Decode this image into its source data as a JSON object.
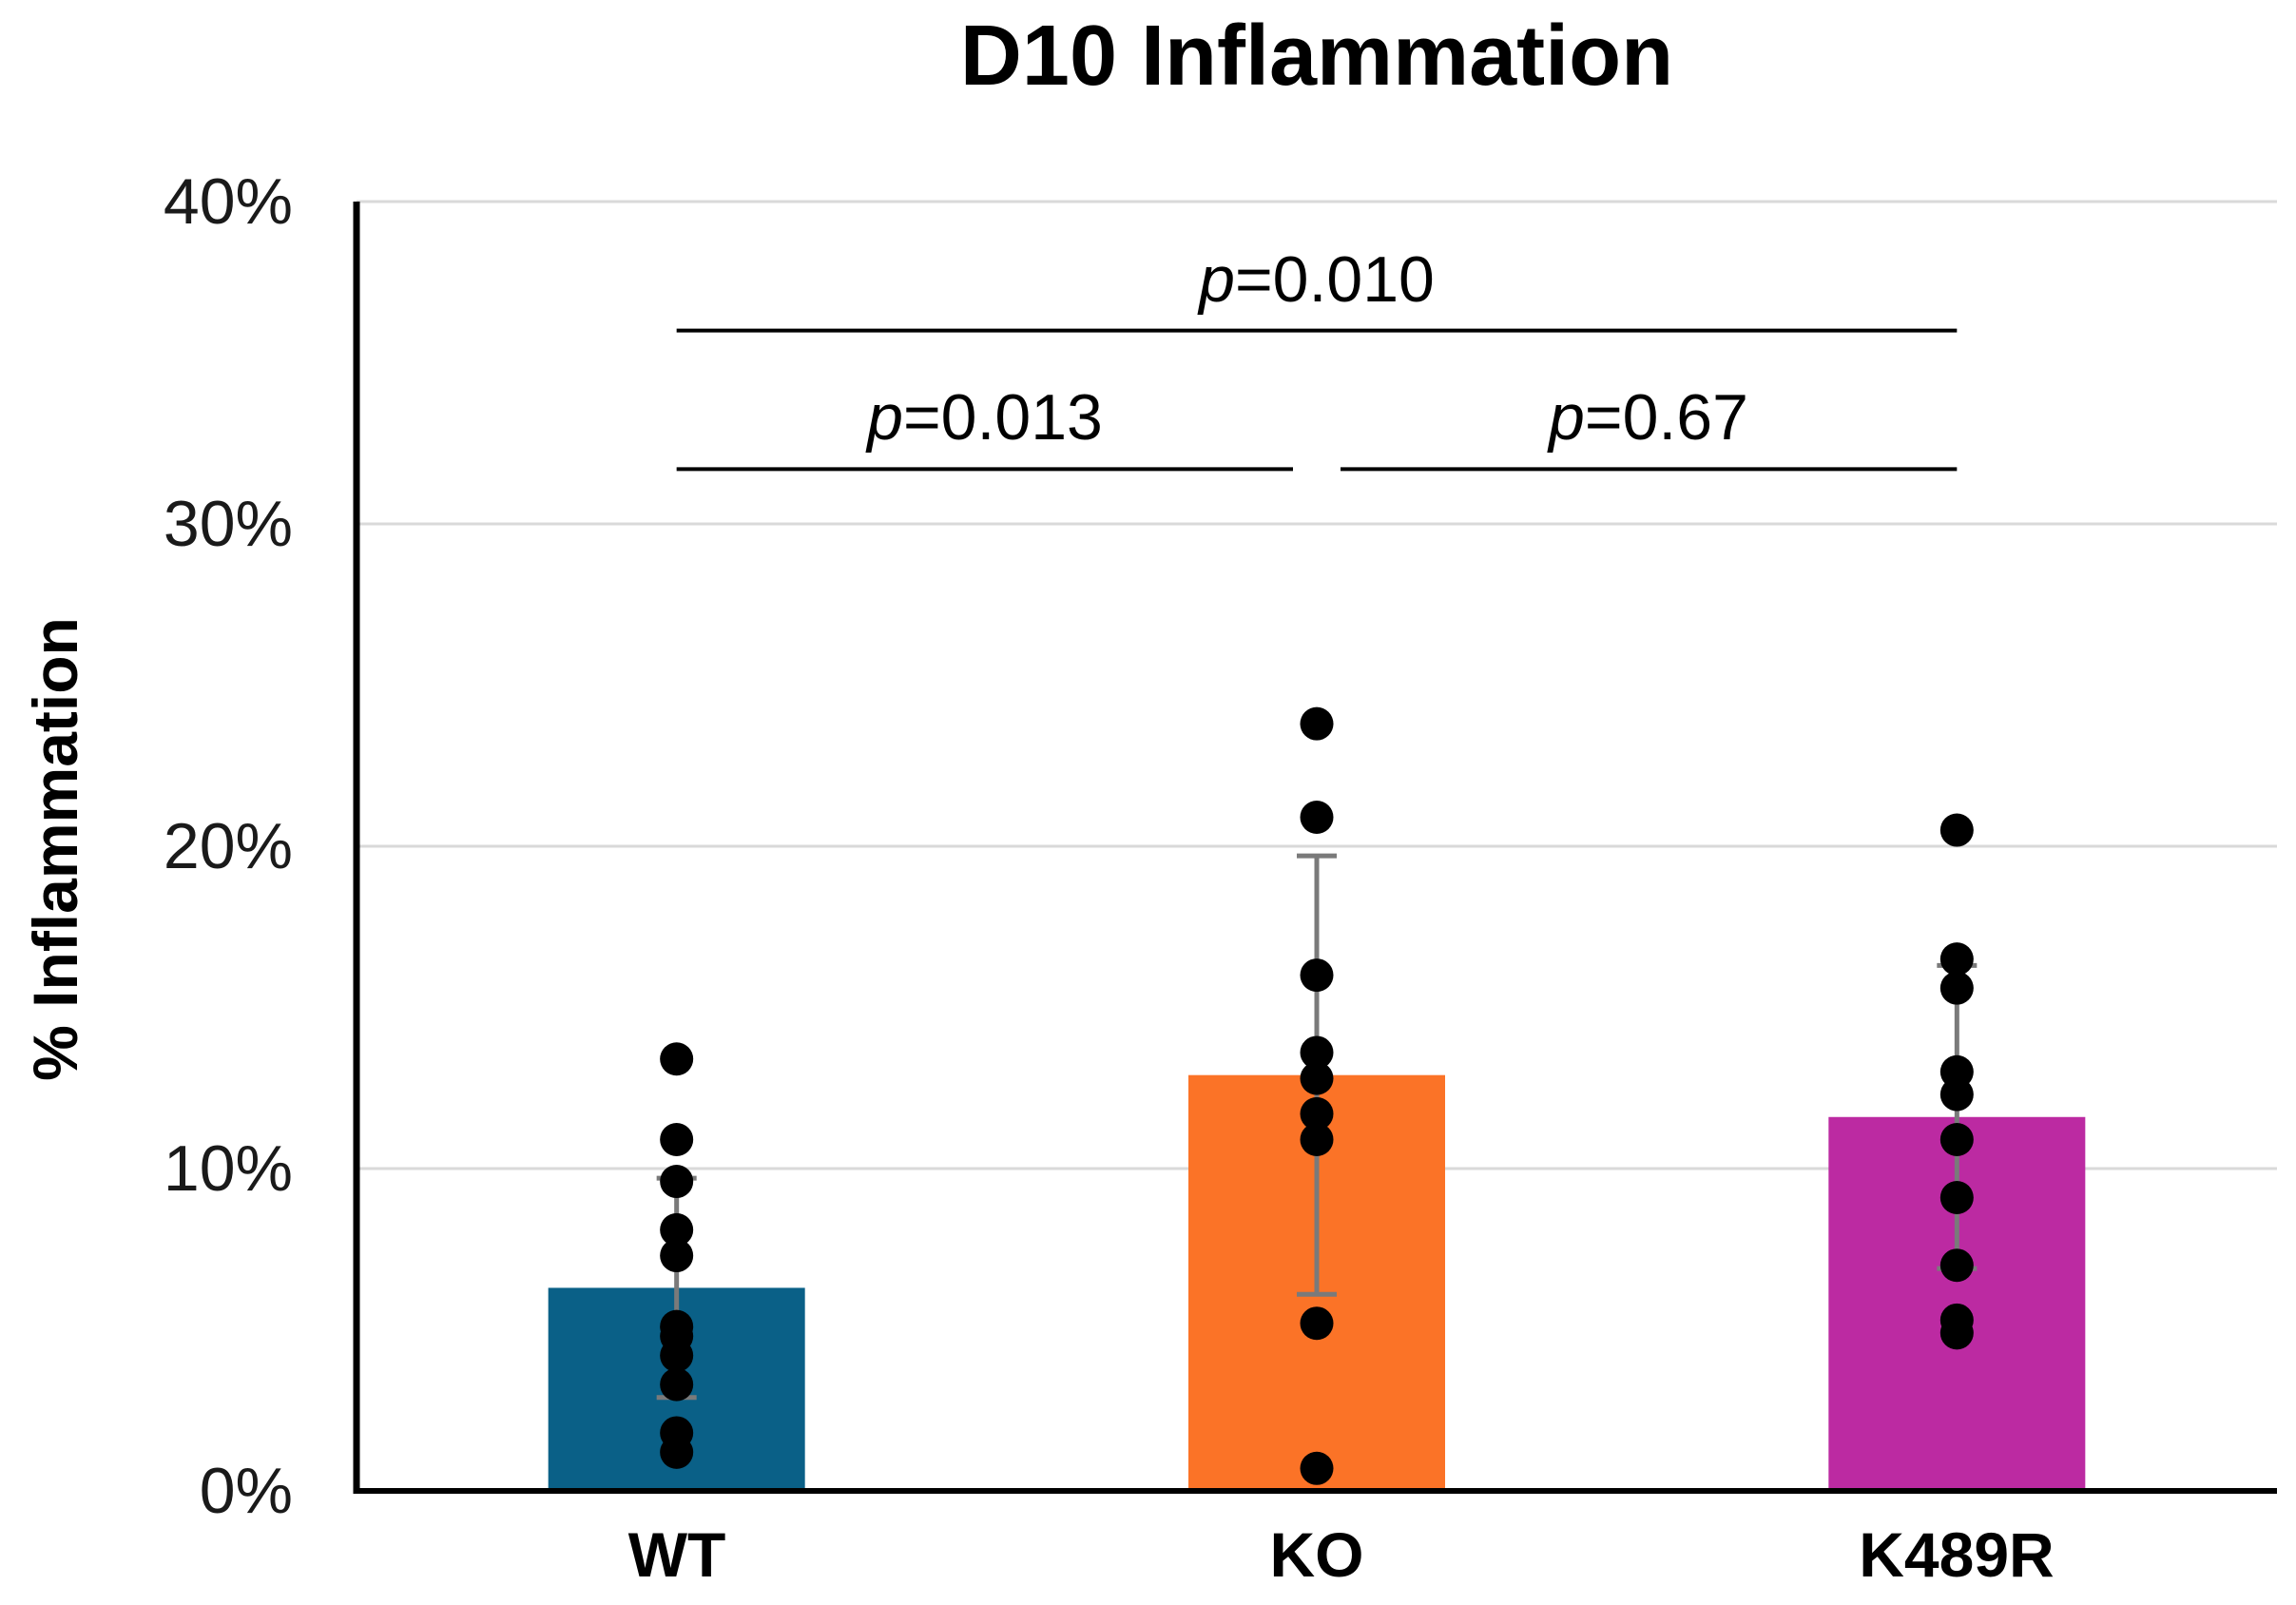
{
  "chart_data": {
    "type": "bar",
    "title": "D10 Inflammation",
    "ylabel": "% Inflammation",
    "categories": [
      "WT",
      "KO",
      "K489R"
    ],
    "values": [
      6.3,
      12.9,
      11.6
    ],
    "bar_colors": [
      "#0A6087",
      "#FB7327",
      "#BC2AA2"
    ],
    "scatter_points": [
      [
        13.4,
        10.9,
        9.6,
        8.1,
        7.3,
        5.1,
        4.8,
        4.2,
        3.3,
        1.8,
        1.2
      ],
      [
        23.8,
        20.9,
        16.0,
        13.6,
        12.8,
        11.7,
        10.9,
        5.2,
        0.7
      ],
      [
        20.5,
        16.5,
        15.6,
        13.0,
        12.3,
        10.9,
        9.1,
        7.0,
        5.3,
        4.9
      ]
    ],
    "error_bars": [
      {
        "low": 2.9,
        "high": 9.7
      },
      {
        "low": 6.1,
        "high": 19.7
      },
      {
        "low": 6.9,
        "high": 16.3
      }
    ],
    "y_ticks": [
      "40%",
      "30%",
      "20%",
      "10%",
      "0%"
    ],
    "y_tick_values": [
      40,
      30,
      20,
      10,
      0
    ],
    "ylim": [
      0,
      40
    ],
    "grid": true,
    "legend": "none",
    "annotations": [
      {
        "prefix": "p",
        "text": "=0.010",
        "from": 0,
        "to": 2,
        "line_y_pct": 36.0,
        "x_inset_from": 0,
        "x_inset_to": 0
      },
      {
        "prefix": "p",
        "text": "=0.013",
        "from": 0,
        "to": 1,
        "line_y_pct": 31.7,
        "x_inset_from": 0,
        "x_inset_to": 25
      },
      {
        "prefix": "p",
        "text": "=0.67",
        "from": 1,
        "to": 2,
        "line_y_pct": 31.7,
        "x_inset_from": 25,
        "x_inset_to": 0
      }
    ],
    "colors": {
      "grid": "#D9D9D9",
      "axis": "#000000",
      "bracket": "#000000",
      "error_bar": "#7A7A7A",
      "point": "#000000",
      "text": "#000000"
    }
  }
}
